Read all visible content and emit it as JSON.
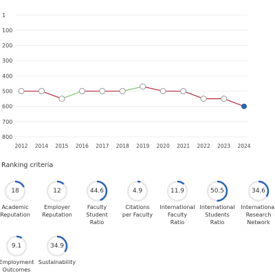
{
  "chart_data": {
    "type": "line",
    "x": [
      "2012",
      "2014",
      "2015",
      "2016",
      "2017",
      "2018",
      "2019",
      "2020",
      "2021",
      "2022",
      "2023",
      "2024"
    ],
    "y": [
      500,
      500,
      550,
      500,
      500,
      500,
      470,
      500,
      500,
      550,
      550,
      600
    ],
    "y_ticks": [
      "1",
      "100",
      "200",
      "300",
      "400",
      "500",
      "600",
      "700",
      "800"
    ],
    "ylim": [
      800,
      1
    ],
    "y_inverted": true,
    "grid": true,
    "colors": {
      "up": "#7cc26a",
      "down": "#b5283c",
      "point_fill": "#ffffff",
      "point_stroke": "#999999",
      "last_point": "#2a63b8",
      "grid": "#eeeeee"
    }
  },
  "criteria_heading": "Ranking criteria",
  "criteria": [
    {
      "label": [
        "Academic",
        "Reputation"
      ],
      "value": "18",
      "score": 18
    },
    {
      "label": [
        "Employer",
        "Reputation"
      ],
      "value": "12",
      "score": 12
    },
    {
      "label": [
        "Faculty",
        "Student",
        "Ratio"
      ],
      "value": "44.6",
      "score": 44.6
    },
    {
      "label": [
        "Citations",
        "per Faculty"
      ],
      "value": "4.9",
      "score": 4.9
    },
    {
      "label": [
        "International",
        "Faculty",
        "Ratio"
      ],
      "value": "11.9",
      "score": 11.9
    },
    {
      "label": [
        "International",
        "Students",
        "Ratio"
      ],
      "value": "50.5",
      "score": 50.5
    },
    {
      "label": [
        "International",
        "Research",
        "Network"
      ],
      "value": "34.6",
      "score": 34.6
    },
    {
      "label": [
        "Employment",
        "Outcomes"
      ],
      "value": "9.1",
      "score": 9.1
    },
    {
      "label": [
        "Sustainability"
      ],
      "value": "34.9",
      "score": 34.9
    }
  ],
  "gauge_colors": {
    "track": "#e8e8e8",
    "fill": "#2a63b8"
  }
}
